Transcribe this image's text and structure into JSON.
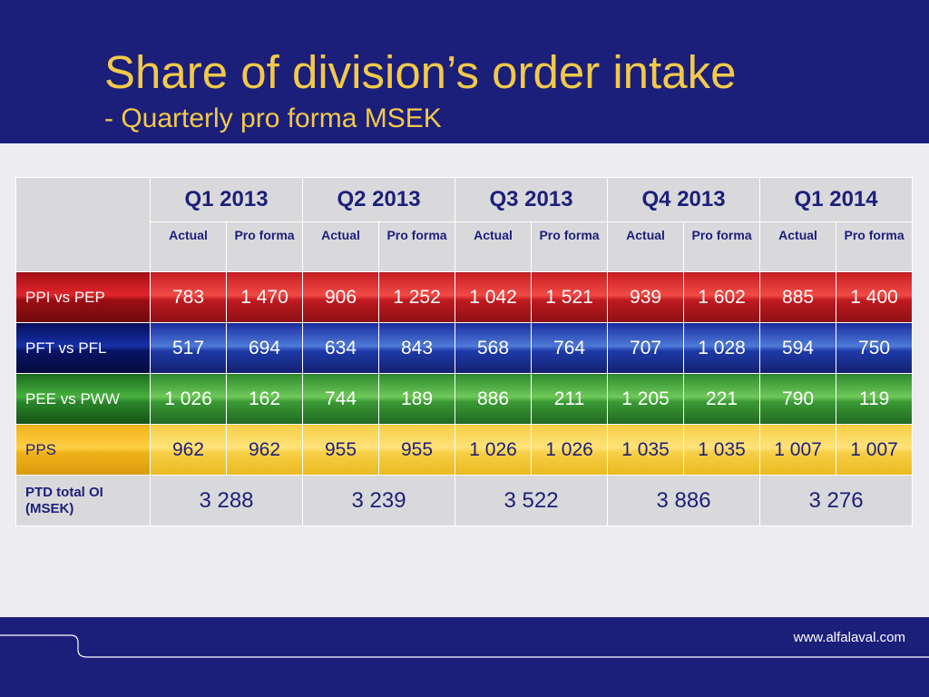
{
  "header": {
    "title": "Share of division’s order intake",
    "subtitle": "- Quarterly pro forma MSEK"
  },
  "table": {
    "quarters": [
      "Q1 2013",
      "Q2 2013",
      "Q3 2013",
      "Q4 2013",
      "Q1 2014"
    ],
    "subheaders": {
      "actual": "Actual",
      "pro_forma": "Pro forma"
    },
    "rows": [
      {
        "label": "PPI vs PEP",
        "values": [
          "783",
          "1 470",
          "906",
          "1 252",
          "1 042",
          "1 521",
          "939",
          "1 602",
          "885",
          "1 400"
        ]
      },
      {
        "label": "PFT vs PFL",
        "values": [
          "517",
          "694",
          "634",
          "843",
          "568",
          "764",
          "707",
          "1 028",
          "594",
          "750"
        ]
      },
      {
        "label": "PEE vs PWW",
        "values": [
          "1 026",
          "162",
          "744",
          "189",
          "886",
          "211",
          "1 205",
          "221",
          "790",
          "119"
        ]
      },
      {
        "label": "PPS",
        "values": [
          "962",
          "962",
          "955",
          "955",
          "1 026",
          "1 026",
          "1 035",
          "1 035",
          "1 007",
          "1 007"
        ]
      }
    ],
    "total": {
      "label": "PTD total OI (MSEK)",
      "values": [
        "3 288",
        "3 239",
        "3 522",
        "3 886",
        "3 276"
      ]
    }
  },
  "footer": {
    "url": "www.alfalaval.com"
  },
  "colors": {
    "brand_navy": "#1c1f7a",
    "title_yellow": "#f2c94a"
  }
}
